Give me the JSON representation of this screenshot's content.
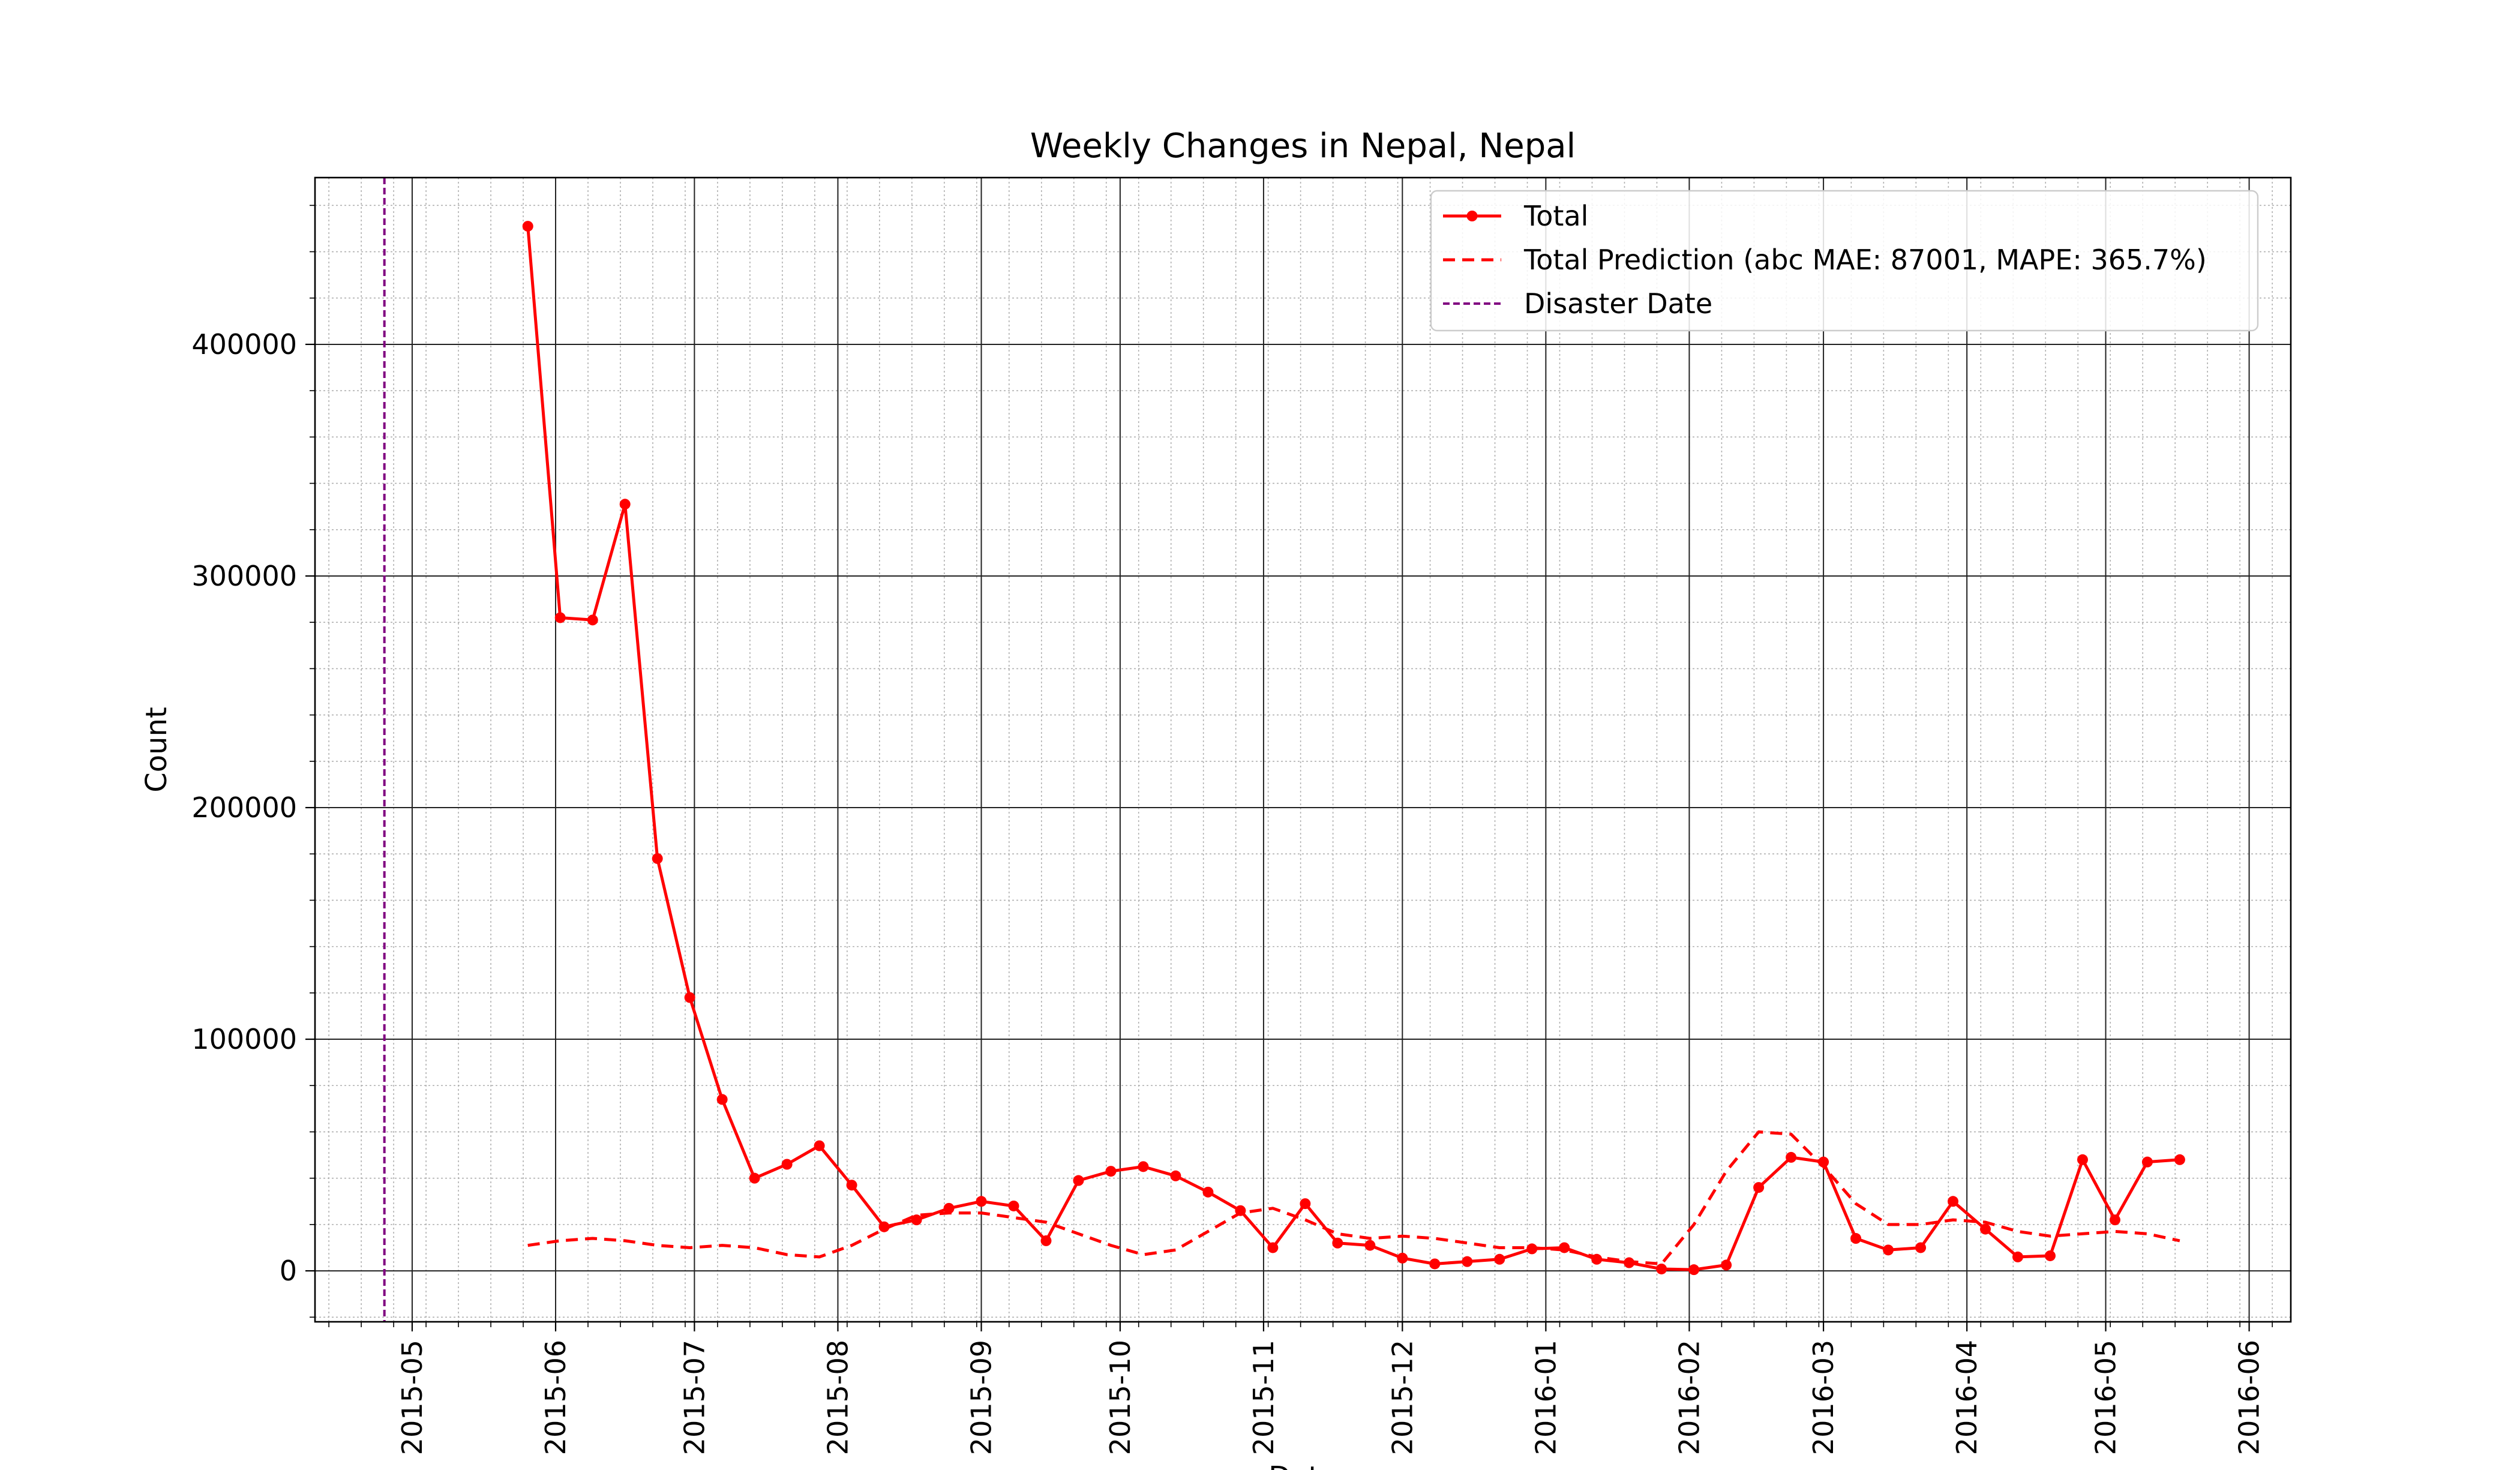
{
  "chart_data": {
    "type": "line",
    "title": "Weekly Changes in Nepal, Nepal",
    "xlabel": "Date",
    "ylabel": "Count",
    "x_range": [
      "2015-04-10",
      "2016-06-10"
    ],
    "ylim": [
      -22000,
      472000
    ],
    "grid": true,
    "legend_position": "top-right",
    "yticks": [
      {
        "value": 0,
        "label": "0"
      },
      {
        "value": 100000,
        "label": "100000"
      },
      {
        "value": 200000,
        "label": "200000"
      },
      {
        "value": 300000,
        "label": "300000"
      },
      {
        "value": 400000,
        "label": "400000"
      }
    ],
    "xticks": [
      {
        "date": "2015-05-01",
        "label": "2015-05"
      },
      {
        "date": "2015-06-01",
        "label": "2015-06"
      },
      {
        "date": "2015-07-01",
        "label": "2015-07"
      },
      {
        "date": "2015-08-01",
        "label": "2015-08"
      },
      {
        "date": "2015-09-01",
        "label": "2015-09"
      },
      {
        "date": "2015-10-01",
        "label": "2015-10"
      },
      {
        "date": "2015-11-01",
        "label": "2015-11"
      },
      {
        "date": "2015-12-01",
        "label": "2015-12"
      },
      {
        "date": "2016-01-01",
        "label": "2016-01"
      },
      {
        "date": "2016-02-01",
        "label": "2016-02"
      },
      {
        "date": "2016-03-01",
        "label": "2016-03"
      },
      {
        "date": "2016-04-01",
        "label": "2016-04"
      },
      {
        "date": "2016-05-01",
        "label": "2016-05"
      },
      {
        "date": "2016-06-01",
        "label": "2016-06"
      }
    ],
    "dates": [
      "2015-05-26",
      "2015-06-02",
      "2015-06-09",
      "2015-06-16",
      "2015-06-23",
      "2015-06-30",
      "2015-07-07",
      "2015-07-14",
      "2015-07-21",
      "2015-07-28",
      "2015-08-04",
      "2015-08-11",
      "2015-08-18",
      "2015-08-25",
      "2015-09-01",
      "2015-09-08",
      "2015-09-15",
      "2015-09-22",
      "2015-09-29",
      "2015-10-06",
      "2015-10-13",
      "2015-10-20",
      "2015-10-27",
      "2015-11-03",
      "2015-11-10",
      "2015-11-17",
      "2015-11-24",
      "2015-12-01",
      "2015-12-08",
      "2015-12-15",
      "2015-12-22",
      "2015-12-29",
      "2016-01-05",
      "2016-01-12",
      "2016-01-19",
      "2016-01-26",
      "2016-02-02",
      "2016-02-09",
      "2016-02-16",
      "2016-02-23",
      "2016-03-01",
      "2016-03-08",
      "2016-03-15",
      "2016-03-22",
      "2016-03-29",
      "2016-04-05",
      "2016-04-12",
      "2016-04-19",
      "2016-04-26",
      "2016-05-03",
      "2016-05-10",
      "2016-05-17"
    ],
    "series": [
      {
        "name": "Total",
        "color": "#ff0000",
        "style": "solid-markers",
        "values": [
          451000,
          282000,
          281000,
          331000,
          178000,
          118000,
          74000,
          40000,
          46000,
          54000,
          37000,
          19000,
          22000,
          27000,
          30000,
          28000,
          13000,
          39000,
          43000,
          45000,
          41000,
          34000,
          26000,
          10000,
          29000,
          12000,
          11000,
          5500,
          3000,
          4000,
          5000,
          9500,
          10000,
          5000,
          3500,
          800,
          500,
          2500,
          36000,
          49000,
          47000,
          14000,
          9000,
          10000,
          30000,
          18000,
          6000,
          6500,
          48000,
          22000,
          47000,
          48000
        ]
      },
      {
        "name": "Total Prediction (abc MAE: 87001, MAPE: 365.7%)",
        "color": "#ff0000",
        "style": "dashed",
        "values": [
          11000,
          13000,
          14000,
          13000,
          11000,
          10000,
          11000,
          10000,
          7000,
          6000,
          11000,
          18000,
          24000,
          25000,
          25000,
          23000,
          21000,
          16000,
          11000,
          7000,
          9000,
          17000,
          25000,
          27000,
          22000,
          16000,
          14000,
          15000,
          14000,
          12000,
          10000,
          10000,
          9000,
          6000,
          4000,
          3000,
          20000,
          43000,
          60000,
          59000,
          45000,
          29000,
          20000,
          20000,
          22000,
          21000,
          17000,
          15000,
          16000,
          17000,
          16000,
          13000
        ]
      },
      {
        "name": "Disaster Date",
        "color": "#800080",
        "style": "dashed-vertical",
        "date": "2015-04-25"
      }
    ]
  }
}
